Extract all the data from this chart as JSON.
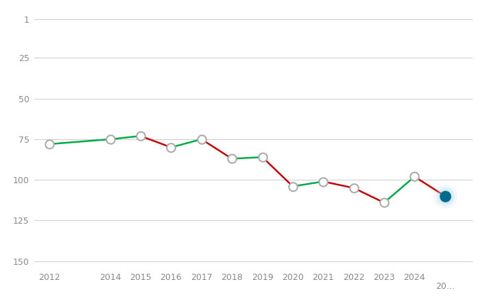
{
  "years": [
    2012,
    2014,
    2015,
    2016,
    2017,
    2018,
    2019,
    2020,
    2021,
    2022,
    2023,
    2024,
    2025
  ],
  "rankings": [
    78,
    75,
    73,
    80,
    75,
    87,
    86,
    104,
    101,
    105,
    114,
    98,
    110
  ],
  "yticks": [
    1,
    25,
    50,
    75,
    100,
    125,
    150
  ],
  "ylim": [
    155,
    -5
  ],
  "xlim": [
    2011.5,
    2025.9
  ],
  "bg_color": "#ffffff",
  "grid_color": "#cccccc",
  "red_color": "#cc0000",
  "green_color": "#00aa44",
  "marker_edge": "#aaaaaa",
  "highlight_color": "#006b8f",
  "highlight_glow": "#a8d8e8",
  "tick_color": "#888888",
  "line_width": 1.8,
  "marker_size": 9,
  "xtick_years": [
    2012,
    2014,
    2015,
    2016,
    2017,
    2018,
    2019,
    2020,
    2021,
    2022,
    2023,
    2024
  ],
  "last_xtick_label": "20...",
  "last_xtick_x": 2025
}
